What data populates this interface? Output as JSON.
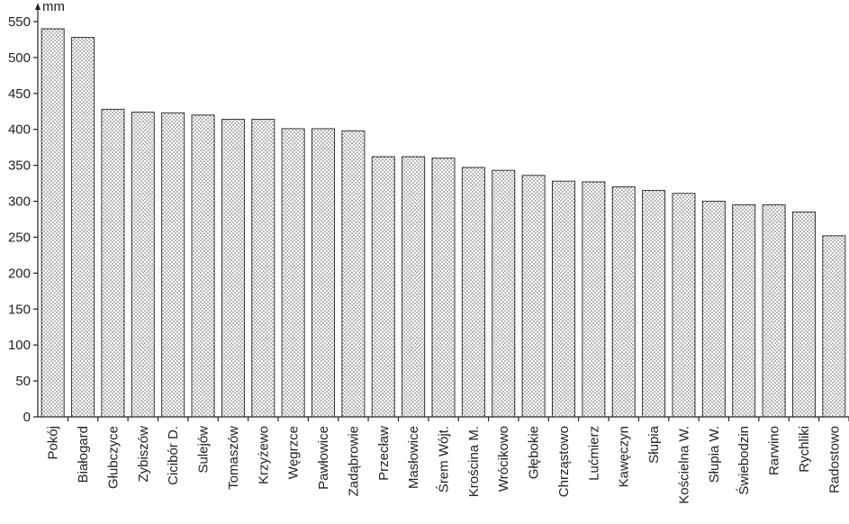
{
  "chart_data": {
    "type": "bar",
    "categories": [
      "Pokój",
      "Białogard",
      "Głubczyce",
      "Zybiszów",
      "Cicibór D.",
      "Sulejów",
      "Tomaszów",
      "Krzyżewo",
      "Węgrzce",
      "Pawłowice",
      "Zadąbrowie",
      "Przecław",
      "Masłowice",
      "Śrem Wójt.",
      "Krościna M.",
      "Wrócikowo",
      "Głębokie",
      "Chrząstowo",
      "Lućmierz",
      "Kawęczyn",
      "Słupia",
      "Kościelna W.",
      "Słupia W.",
      "Świebodzin",
      "Rarwino",
      "Rychliki",
      "Radostowo"
    ],
    "values": [
      540,
      528,
      428,
      424,
      423,
      420,
      414,
      414,
      401,
      401,
      398,
      362,
      362,
      360,
      347,
      343,
      336,
      328,
      327,
      320,
      315,
      311,
      300,
      295,
      295,
      285,
      252
    ],
    "ylabel": "mm",
    "ylim": [
      0,
      550
    ],
    "yticks": [
      0,
      50,
      100,
      150,
      200,
      250,
      300,
      350,
      400,
      450,
      500,
      550
    ],
    "grid": false,
    "legend": false
  }
}
